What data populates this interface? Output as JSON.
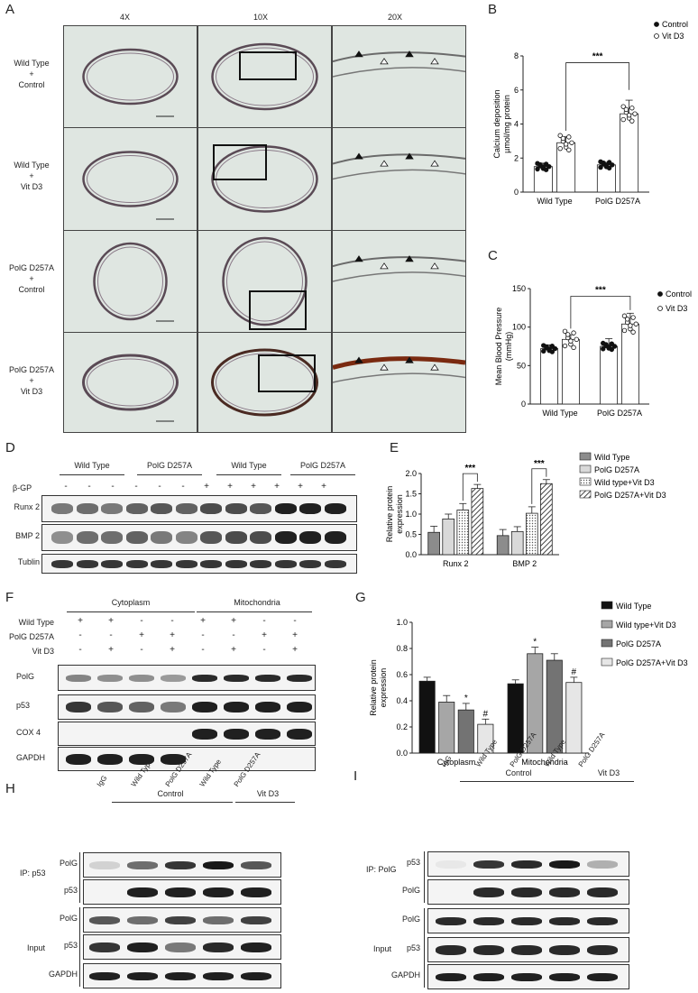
{
  "panels": {
    "A": "A",
    "B": "B",
    "C": "C",
    "D": "D",
    "E": "E",
    "F": "F",
    "G": "G",
    "H": "H",
    "I": "I"
  },
  "panelA": {
    "columns": [
      "4X",
      "10X",
      "20X"
    ],
    "rows": [
      [
        "Wild Type",
        "+",
        "Control"
      ],
      [
        "Wild Type",
        "+",
        "Vit D3"
      ],
      [
        "PolG D257A",
        "+",
        "Control"
      ],
      [
        "PolG D257A",
        "+",
        "Vit D3"
      ]
    ]
  },
  "chartB": {
    "type": "bar",
    "ylabel": [
      "Calcium deposition",
      "µmol/mg protein"
    ],
    "categories": [
      "Wild Type",
      "PolG D257A"
    ],
    "series": [
      {
        "name": "Control",
        "values": [
          1.5,
          1.6
        ]
      },
      {
        "name": "Vit D3",
        "values": [
          2.9,
          4.6
        ]
      }
    ],
    "errors": [
      [
        0.2,
        0.15
      ],
      [
        0.35,
        0.8
      ]
    ],
    "ylim": [
      0,
      8
    ],
    "yticks": [
      "0",
      "2",
      "4",
      "6",
      "8"
    ],
    "significance": "***"
  },
  "chartC": {
    "type": "bar",
    "ylabel": [
      "Mean Blood Pressure",
      "(mmHg)"
    ],
    "categories": [
      "Wild Type",
      "PolG D257A"
    ],
    "series": [
      {
        "name": "Control",
        "values": [
          72,
          75
        ]
      },
      {
        "name": "Vit D3",
        "values": [
          84,
          104
        ]
      }
    ],
    "errors": [
      [
        5,
        10
      ],
      [
        6,
        14
      ]
    ],
    "ylim": [
      0,
      150
    ],
    "yticks": [
      "0",
      "50",
      "100",
      "150"
    ],
    "significance": "***"
  },
  "panelD": {
    "groups": [
      "Wild Type",
      "PolG D257A",
      "Wild Type",
      "PolG D257A"
    ],
    "treatment_label": "β-GP",
    "treatment": [
      "-",
      "-",
      "-",
      "-",
      "-",
      "-",
      "+",
      "+",
      "+",
      "+",
      "+",
      "+"
    ],
    "rows": [
      "Runx 2",
      "BMP 2",
      "Tublin"
    ]
  },
  "chartE": {
    "type": "bar",
    "ylabel": [
      "Relative protein",
      "expression"
    ],
    "categories": [
      "Runx 2",
      "BMP 2"
    ],
    "series": [
      {
        "name": "Wild Type",
        "values": [
          0.55,
          0.47
        ]
      },
      {
        "name": "PolG D257A",
        "values": [
          0.88,
          0.57
        ]
      },
      {
        "name": "Wild type+Vit D3",
        "values": [
          1.1,
          1.02
        ]
      },
      {
        "name": "PolG D257A+Vit D3",
        "values": [
          1.63,
          1.75
        ]
      }
    ],
    "errors": [
      0.15,
      0.12,
      0.16,
      0.1
    ],
    "ylim": [
      0,
      2.0
    ],
    "yticks": [
      "0.0",
      "0.5",
      "1.0",
      "1.5",
      "2.0"
    ],
    "significance": "***"
  },
  "panelF": {
    "sections": [
      "Cytoplasm",
      "Mitochondria"
    ],
    "row_labels": [
      "Wild Type",
      "PolG D257A",
      "Vit D3"
    ],
    "signs": [
      [
        "+",
        "+",
        "-",
        "-",
        "+",
        "+",
        "-",
        "-"
      ],
      [
        "-",
        "-",
        "+",
        "+",
        "-",
        "-",
        "+",
        "+"
      ],
      [
        "-",
        "+",
        "-",
        "+",
        "-",
        "+",
        "-",
        "+"
      ]
    ],
    "rows": [
      "PolG",
      "p53",
      "COX 4",
      "GAPDH"
    ]
  },
  "chartG": {
    "type": "bar",
    "ylabel": [
      "Relative protein",
      "expression"
    ],
    "categories": [
      "Cytoplasm",
      "Mitochondria"
    ],
    "series": [
      {
        "name": "Wild Type",
        "values": [
          0.55,
          0.53
        ]
      },
      {
        "name": "Wild type+Vit D3",
        "values": [
          0.39,
          0.76
        ]
      },
      {
        "name": "PolG D257A",
        "values": [
          0.33,
          0.71
        ]
      },
      {
        "name": "PolG D257A+Vit D3",
        "values": [
          0.22,
          0.54
        ]
      }
    ],
    "ylim": [
      0,
      1.0
    ],
    "yticks": [
      "0.0",
      "0.2",
      "0.4",
      "0.6",
      "0.8",
      "1.0"
    ],
    "marks": [
      "*",
      "#",
      "*",
      "#"
    ]
  },
  "panelH": {
    "groups": [
      "Control",
      "Vit D3"
    ],
    "lanes": [
      "IgG",
      "Wild Type",
      "PolG D257A",
      "Wild Type",
      "PolG D257A"
    ],
    "ip_label": "IP: p53",
    "input_label": "Input",
    "ip_rows": [
      "PolG",
      "p53"
    ],
    "input_rows": [
      "PolG",
      "p53",
      "GAPDH"
    ]
  },
  "panelI": {
    "groups": [
      "Control",
      "Vit D3"
    ],
    "lanes": [
      "IgG",
      "Wild Type",
      "PolG D257A",
      "Wild Type",
      "PolG D257A"
    ],
    "ip_label": "IP: PolG",
    "input_label": "Input",
    "ip_rows": [
      "p53",
      "PolG"
    ],
    "input_rows": [
      "PolG",
      "p53",
      "GAPDH"
    ]
  },
  "colors": {
    "bar_dark": "#111111",
    "bar_mid": "#808080",
    "bar_light": "#bdbdbd",
    "bar_pale": "#e6e6e6"
  }
}
